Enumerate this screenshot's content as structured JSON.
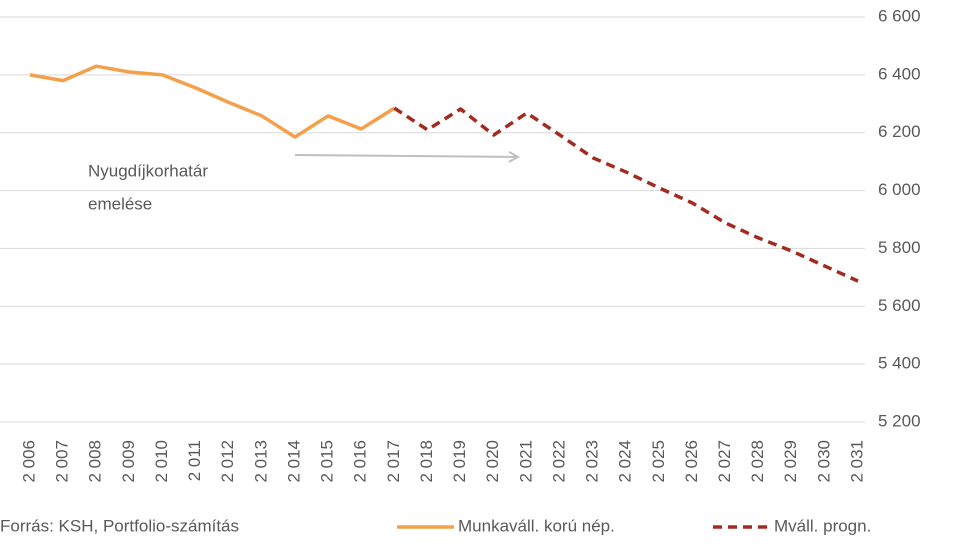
{
  "chart_data": {
    "type": "line",
    "categories": [
      "2 006",
      "2 007",
      "2 008",
      "2 009",
      "2 010",
      "2 011",
      "2 012",
      "2 013",
      "2 014",
      "2 015",
      "2 016",
      "2 017",
      "2 018",
      "2 019",
      "2 020",
      "2 021",
      "2 022",
      "2 023",
      "2 024",
      "2 025",
      "2 026",
      "2 027",
      "2 028",
      "2 029",
      "2 030",
      "2 031"
    ],
    "series": [
      {
        "name": "Munkaváll. korú nép.",
        "color": "#f4a04a",
        "dashed": false,
        "values": [
          6400,
          6380,
          6430,
          6410,
          6400,
          6355,
          6305,
          6258,
          6185,
          6258,
          6213,
          6285,
          null,
          null,
          null,
          null,
          null,
          null,
          null,
          null,
          null,
          null,
          null,
          null,
          null,
          null
        ]
      },
      {
        "name": "Mváll. progn.",
        "color": "#a52a1e",
        "dashed": true,
        "values": [
          null,
          null,
          null,
          null,
          null,
          null,
          null,
          null,
          null,
          null,
          null,
          6285,
          6210,
          6282,
          6192,
          6268,
          6192,
          6113,
          6064,
          6009,
          5957,
          5888,
          5836,
          5791,
          5739,
          5687
        ]
      }
    ],
    "ylim": [
      5200,
      6600
    ],
    "yticks": [
      {
        "value": 5200,
        "label": "5 200"
      },
      {
        "value": 5400,
        "label": "5 400"
      },
      {
        "value": 5600,
        "label": "5 600"
      },
      {
        "value": 5800,
        "label": "5 800"
      },
      {
        "value": 6000,
        "label": "6 000"
      },
      {
        "value": 6200,
        "label": "6 200"
      },
      {
        "value": 6400,
        "label": "6 400"
      },
      {
        "value": 6600,
        "label": "6 600"
      }
    ],
    "grid": true,
    "annotation": [
      "Nyugdíjkorhatár",
      "emelése"
    ],
    "source": "Forrás: KSH, Portfolio-számítás"
  }
}
